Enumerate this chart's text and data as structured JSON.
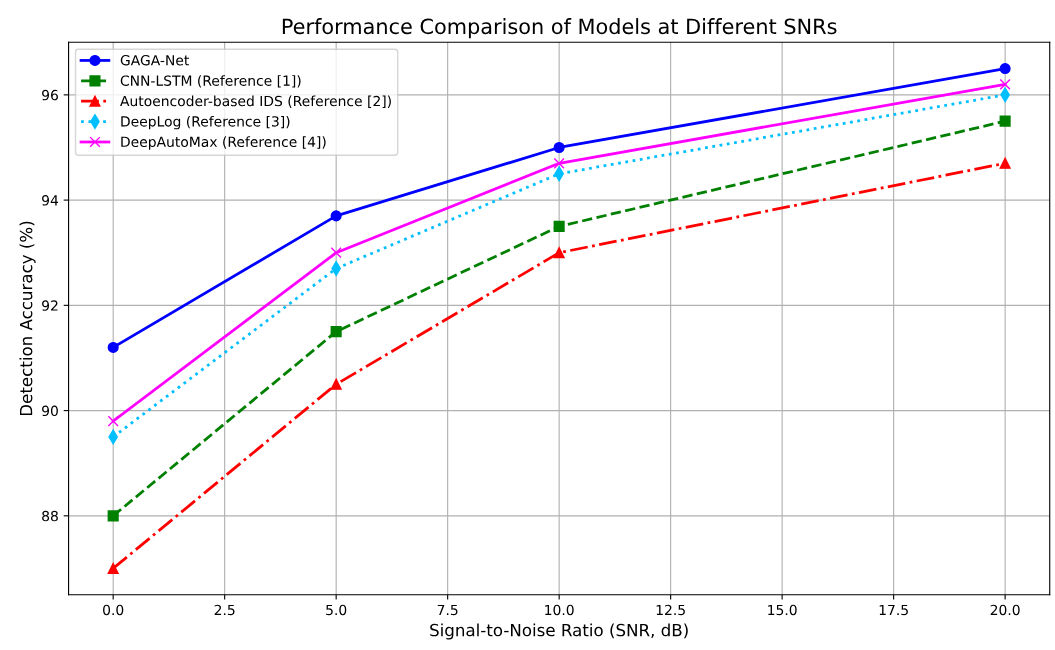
{
  "chart_data": {
    "type": "line",
    "title": "Performance Comparison of Models at Different SNRs",
    "xlabel": "Signal-to-Noise Ratio (SNR, dB)",
    "ylabel": "Detection Accuracy (%)",
    "x": [
      0,
      5,
      10,
      20
    ],
    "series": [
      {
        "name": "GAGA-Net",
        "color": "#0000ff",
        "marker": "circle",
        "line_style": "solid",
        "values": [
          91.2,
          93.7,
          95.0,
          96.5
        ]
      },
      {
        "name": "CNN-LSTM (Reference [1])",
        "color": "#008000",
        "marker": "square",
        "line_style": "dashed",
        "values": [
          88.0,
          91.5,
          93.5,
          95.5
        ]
      },
      {
        "name": "Autoencoder-based IDS (Reference [2])",
        "color": "#ff0000",
        "marker": "triangle",
        "line_style": "dashdot",
        "values": [
          87.0,
          90.5,
          93.0,
          94.7
        ]
      },
      {
        "name": "DeepLog (Reference [3])",
        "color": "#00bfff",
        "marker": "diamond",
        "line_style": "dotted",
        "values": [
          89.5,
          92.7,
          94.5,
          96.0
        ]
      },
      {
        "name": "DeepAutoMax (Reference [4])",
        "color": "#ff00ff",
        "marker": "cross",
        "line_style": "solid",
        "values": [
          89.8,
          93.0,
          94.7,
          96.2
        ]
      }
    ],
    "xlim": [
      -1,
      21
    ],
    "ylim": [
      86.5,
      97.0
    ],
    "xticks": [
      {
        "value": 0,
        "label": "0.0"
      },
      {
        "value": 2.5,
        "label": "2.5"
      },
      {
        "value": 5,
        "label": "5.0"
      },
      {
        "value": 7.5,
        "label": "7.5"
      },
      {
        "value": 10,
        "label": "10.0"
      },
      {
        "value": 12.5,
        "label": "12.5"
      },
      {
        "value": 15,
        "label": "15.0"
      },
      {
        "value": 17.5,
        "label": "17.5"
      },
      {
        "value": 20,
        "label": "20.0"
      }
    ],
    "yticks": [
      88,
      90,
      92,
      94,
      96
    ],
    "grid": true,
    "legend": "top left"
  }
}
